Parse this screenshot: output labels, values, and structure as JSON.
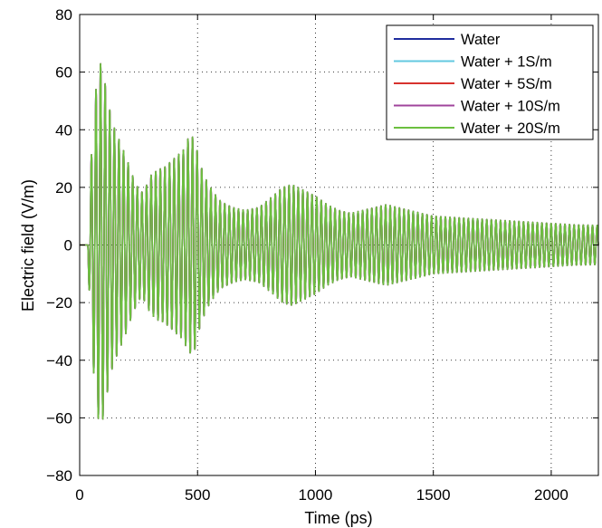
{
  "chart_data": {
    "type": "line",
    "title": "",
    "xlabel": "Time (ps)",
    "ylabel": "Electric field (V/m)",
    "xlim": [
      0,
      2200
    ],
    "ylim": [
      -80,
      80
    ],
    "x_ticks": [
      0,
      500,
      1000,
      1500,
      2000
    ],
    "y_ticks": [
      -80,
      -60,
      -40,
      -20,
      0,
      20,
      40,
      60,
      80
    ],
    "grid": true,
    "grid_style": "dotted",
    "legend_position": "top-right",
    "signal": {
      "period_ps": 19.5,
      "onset_ps": 35,
      "envelope_x": [
        0,
        30,
        40,
        55,
        70,
        85,
        100,
        120,
        140,
        160,
        180,
        200,
        220,
        240,
        260,
        280,
        300,
        330,
        360,
        400,
        440,
        460,
        475,
        490,
        505,
        520,
        540,
        570,
        600,
        650,
        700,
        760,
        820,
        860,
        900,
        950,
        1000,
        1050,
        1100,
        1150,
        1200,
        1250,
        1300,
        1350,
        1400,
        1450,
        1500,
        1600,
        1700,
        1800,
        1900,
        2000,
        2100,
        2200
      ],
      "envelope_y": [
        0,
        0,
        15,
        40,
        55,
        64,
        60,
        50,
        42,
        38,
        34,
        30,
        25,
        21,
        18,
        20,
        24,
        26,
        27,
        30,
        33,
        37,
        38,
        36,
        30,
        26,
        22,
        18,
        15,
        13,
        12,
        13,
        17,
        20,
        21,
        19,
        17,
        14,
        12,
        11,
        12,
        13,
        14,
        13,
        12,
        11,
        10,
        9.5,
        9,
        8.5,
        8,
        7.5,
        7,
        6.8
      ]
    },
    "series": [
      {
        "name": "Water",
        "color": "#1f2d9e"
      },
      {
        "name": "Water + 1S/m",
        "color": "#63c8e0"
      },
      {
        "name": "Water + 5S/m",
        "color": "#d7322e"
      },
      {
        "name": "Water + 10S/m",
        "color": "#a0449c"
      },
      {
        "name": "Water + 20S/m",
        "color": "#6cbf3f"
      }
    ]
  }
}
